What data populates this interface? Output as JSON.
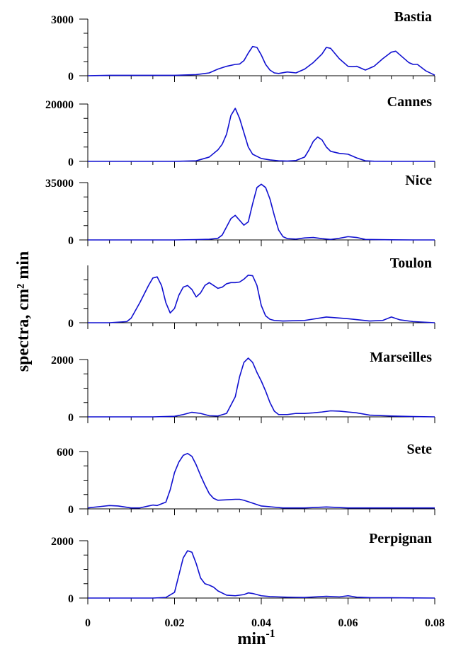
{
  "chart_data": {
    "type": "line",
    "layout": "stacked panels",
    "ylabel": "spectra, cm² min",
    "xlabel": "min⁻¹",
    "xlim": [
      0,
      0.08
    ],
    "xticks": [
      0,
      0.02,
      0.04,
      0.06,
      0.08
    ],
    "xtick_labels": [
      "0",
      "0.02",
      "0.04",
      "0.06",
      "0.08"
    ],
    "line_color": "#1010d0",
    "panels": [
      {
        "title": "Bastia",
        "ylim": [
          0,
          3000
        ],
        "yticks": [
          0,
          3000
        ],
        "ytick_labels": [
          "0",
          "3000"
        ],
        "x": [
          0,
          0.005,
          0.01,
          0.015,
          0.02,
          0.025,
          0.028,
          0.03,
          0.032,
          0.034,
          0.035,
          0.036,
          0.037,
          0.038,
          0.039,
          0.04,
          0.041,
          0.042,
          0.043,
          0.044,
          0.046,
          0.048,
          0.05,
          0.052,
          0.054,
          0.055,
          0.056,
          0.058,
          0.06,
          0.061,
          0.062,
          0.064,
          0.066,
          0.068,
          0.07,
          0.071,
          0.072,
          0.074,
          0.075,
          0.076,
          0.078,
          0.08
        ],
        "values": [
          0,
          20,
          20,
          20,
          20,
          60,
          150,
          350,
          500,
          600,
          620,
          800,
          1200,
          1550,
          1500,
          1100,
          600,
          300,
          150,
          120,
          200,
          150,
          350,
          700,
          1150,
          1500,
          1450,
          900,
          500,
          480,
          500,
          300,
          500,
          900,
          1250,
          1300,
          1100,
          700,
          600,
          600,
          250,
          30
        ]
      },
      {
        "title": "Cannes",
        "ylim": [
          0,
          20000
        ],
        "yticks": [
          0,
          20000
        ],
        "ytick_labels": [
          "0",
          "20000"
        ],
        "x": [
          0,
          0.005,
          0.01,
          0.015,
          0.02,
          0.025,
          0.028,
          0.03,
          0.031,
          0.032,
          0.033,
          0.034,
          0.035,
          0.036,
          0.037,
          0.038,
          0.04,
          0.042,
          0.044,
          0.046,
          0.048,
          0.05,
          0.051,
          0.052,
          0.053,
          0.054,
          0.055,
          0.056,
          0.058,
          0.06,
          0.062,
          0.064,
          0.066,
          0.07,
          0.075,
          0.08
        ],
        "values": [
          0,
          0,
          0,
          0,
          0,
          200,
          1500,
          4000,
          6000,
          9500,
          16000,
          18500,
          15000,
          10000,
          5000,
          2500,
          1000,
          500,
          200,
          100,
          300,
          1500,
          4000,
          7000,
          8500,
          7500,
          5000,
          3500,
          2800,
          2500,
          1200,
          200,
          50,
          0,
          0,
          0
        ]
      },
      {
        "title": "Nice",
        "ylim": [
          0,
          35000
        ],
        "yticks": [
          0,
          35000
        ],
        "ytick_labels": [
          "0",
          "35000"
        ],
        "x": [
          0,
          0.005,
          0.01,
          0.015,
          0.02,
          0.025,
          0.028,
          0.03,
          0.031,
          0.032,
          0.033,
          0.034,
          0.035,
          0.036,
          0.037,
          0.038,
          0.039,
          0.04,
          0.041,
          0.042,
          0.043,
          0.044,
          0.045,
          0.046,
          0.048,
          0.05,
          0.052,
          0.054,
          0.056,
          0.058,
          0.06,
          0.062,
          0.064,
          0.07,
          0.075,
          0.08
        ],
        "values": [
          0,
          0,
          0,
          0,
          0,
          200,
          400,
          1000,
          3000,
          8000,
          13000,
          15000,
          12000,
          9000,
          11000,
          22000,
          32000,
          34000,
          32000,
          25000,
          15000,
          6000,
          2000,
          800,
          500,
          1200,
          1500,
          800,
          300,
          1000,
          2000,
          1500,
          300,
          100,
          0,
          0
        ]
      },
      {
        "title": "Toulon",
        "ylim": [
          0,
          1000
        ],
        "yticks": [
          0
        ],
        "ytick_labels": [
          "0"
        ],
        "x": [
          0,
          0.005,
          0.009,
          0.01,
          0.012,
          0.014,
          0.015,
          0.016,
          0.017,
          0.018,
          0.019,
          0.02,
          0.021,
          0.022,
          0.023,
          0.024,
          0.025,
          0.026,
          0.027,
          0.028,
          0.029,
          0.03,
          0.031,
          0.032,
          0.033,
          0.034,
          0.035,
          0.036,
          0.037,
          0.038,
          0.039,
          0.04,
          0.041,
          0.042,
          0.043,
          0.045,
          0.05,
          0.055,
          0.06,
          0.065,
          0.068,
          0.07,
          0.072,
          0.075,
          0.08
        ],
        "values": [
          0,
          0,
          20,
          80,
          350,
          650,
          780,
          800,
          650,
          350,
          170,
          250,
          480,
          620,
          650,
          580,
          450,
          520,
          650,
          700,
          650,
          600,
          620,
          680,
          700,
          700,
          710,
          760,
          830,
          820,
          650,
          300,
          120,
          60,
          40,
          30,
          40,
          100,
          70,
          30,
          40,
          100,
          50,
          20,
          0
        ]
      },
      {
        "title": "Marseilles",
        "ylim": [
          0,
          2000
        ],
        "yticks": [
          0,
          2000
        ],
        "ytick_labels": [
          "0",
          "2000"
        ],
        "x": [
          0,
          0.005,
          0.01,
          0.015,
          0.02,
          0.022,
          0.024,
          0.026,
          0.028,
          0.03,
          0.032,
          0.034,
          0.035,
          0.036,
          0.037,
          0.038,
          0.039,
          0.04,
          0.041,
          0.042,
          0.043,
          0.044,
          0.046,
          0.048,
          0.05,
          0.052,
          0.054,
          0.056,
          0.058,
          0.06,
          0.062,
          0.065,
          0.07,
          0.075,
          0.08
        ],
        "values": [
          0,
          0,
          0,
          0,
          20,
          80,
          160,
          120,
          40,
          30,
          120,
          700,
          1400,
          1900,
          2050,
          1900,
          1550,
          1250,
          900,
          500,
          200,
          80,
          80,
          120,
          120,
          140,
          170,
          210,
          200,
          170,
          140,
          60,
          30,
          10,
          0
        ]
      },
      {
        "title": "Sete",
        "ylim": [
          0,
          600
        ],
        "yticks": [
          0,
          600
        ],
        "ytick_labels": [
          "0",
          "600"
        ],
        "x": [
          0,
          0.003,
          0.005,
          0.007,
          0.01,
          0.012,
          0.014,
          0.015,
          0.016,
          0.018,
          0.019,
          0.02,
          0.021,
          0.022,
          0.023,
          0.024,
          0.025,
          0.026,
          0.027,
          0.028,
          0.029,
          0.03,
          0.032,
          0.034,
          0.035,
          0.036,
          0.038,
          0.04,
          0.045,
          0.05,
          0.055,
          0.06,
          0.065,
          0.07,
          0.075,
          0.08
        ],
        "values": [
          10,
          25,
          35,
          30,
          10,
          10,
          30,
          40,
          35,
          70,
          200,
          380,
          490,
          560,
          580,
          550,
          460,
          350,
          250,
          160,
          110,
          90,
          95,
          100,
          100,
          90,
          60,
          30,
          10,
          10,
          20,
          10,
          10,
          10,
          10,
          10
        ]
      },
      {
        "title": "Perpignan",
        "ylim": [
          0,
          2000
        ],
        "yticks": [
          0,
          2000
        ],
        "ytick_labels": [
          "0",
          "2000"
        ],
        "x": [
          0,
          0.005,
          0.01,
          0.015,
          0.018,
          0.02,
          0.021,
          0.022,
          0.023,
          0.024,
          0.025,
          0.026,
          0.027,
          0.028,
          0.029,
          0.03,
          0.032,
          0.034,
          0.036,
          0.037,
          0.038,
          0.04,
          0.042,
          0.044,
          0.046,
          0.048,
          0.05,
          0.055,
          0.058,
          0.06,
          0.062,
          0.065,
          0.07,
          0.075,
          0.08
        ],
        "values": [
          0,
          0,
          0,
          0,
          20,
          200,
          800,
          1400,
          1650,
          1600,
          1200,
          700,
          500,
          450,
          380,
          250,
          100,
          80,
          120,
          180,
          160,
          80,
          50,
          40,
          30,
          25,
          20,
          60,
          40,
          80,
          30,
          15,
          10,
          5,
          0
        ]
      }
    ]
  }
}
